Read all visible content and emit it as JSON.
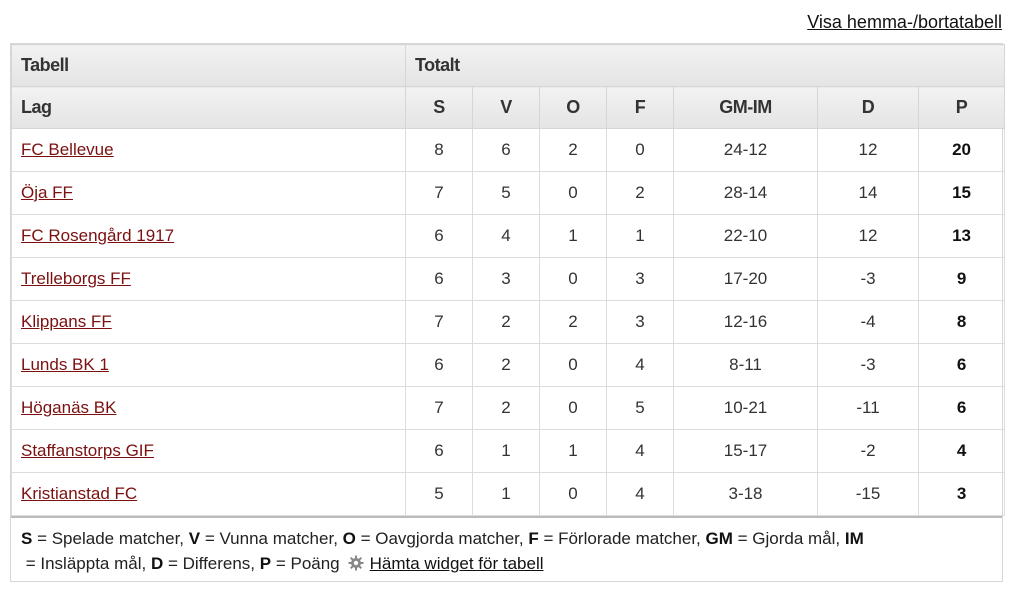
{
  "top_link": "Visa hemma-/bortatabell",
  "header": {
    "title_col": "Tabell",
    "totalt": "Totalt",
    "columns": [
      "Lag",
      "S",
      "V",
      "O",
      "F",
      "GM-IM",
      "D",
      "P"
    ]
  },
  "rows": [
    {
      "team": "FC Bellevue",
      "s": "8",
      "v": "6",
      "o": "2",
      "f": "0",
      "gmim": "24-12",
      "d": "12",
      "p": "20"
    },
    {
      "team": "Öja FF",
      "s": "7",
      "v": "5",
      "o": "0",
      "f": "2",
      "gmim": "28-14",
      "d": "14",
      "p": "15"
    },
    {
      "team": "FC Rosengård 1917",
      "s": "6",
      "v": "4",
      "o": "1",
      "f": "1",
      "gmim": "22-10",
      "d": "12",
      "p": "13"
    },
    {
      "team": "Trelleborgs FF",
      "s": "6",
      "v": "3",
      "o": "0",
      "f": "3",
      "gmim": "17-20",
      "d": "-3",
      "p": "9"
    },
    {
      "team": "Klippans FF",
      "s": "7",
      "v": "2",
      "o": "2",
      "f": "3",
      "gmim": "12-16",
      "d": "-4",
      "p": "8"
    },
    {
      "team": "Lunds BK 1",
      "s": "6",
      "v": "2",
      "o": "0",
      "f": "4",
      "gmim": "8-11",
      "d": "-3",
      "p": "6"
    },
    {
      "team": "Höganäs BK",
      "s": "7",
      "v": "2",
      "o": "0",
      "f": "5",
      "gmim": "10-21",
      "d": "-11",
      "p": "6"
    },
    {
      "team": "Staffanstorps GIF",
      "s": "6",
      "v": "1",
      "o": "1",
      "f": "4",
      "gmim": "15-17",
      "d": "-2",
      "p": "4"
    },
    {
      "team": "Kristianstad FC",
      "s": "5",
      "v": "1",
      "o": "0",
      "f": "4",
      "gmim": "3-18",
      "d": "-15",
      "p": "3"
    }
  ],
  "legend": {
    "items": [
      {
        "abbr": "S",
        "text": " = Spelade matcher, "
      },
      {
        "abbr": "V",
        "text": " = Vunna matcher, "
      },
      {
        "abbr": "O",
        "text": " = Oavgjorda matcher, "
      },
      {
        "abbr": "F",
        "text": " = Förlorade matcher, "
      },
      {
        "abbr": "GM",
        "text": " = Gjorda mål, "
      },
      {
        "abbr": "IM",
        "text": " = Insläppta mål, "
      },
      {
        "abbr": "D",
        "text": " = Differens, "
      },
      {
        "abbr": "P",
        "text": " = Poäng"
      }
    ],
    "widget_link": "Hämta widget för tabell",
    "widget_icon": "gear-icon"
  }
}
